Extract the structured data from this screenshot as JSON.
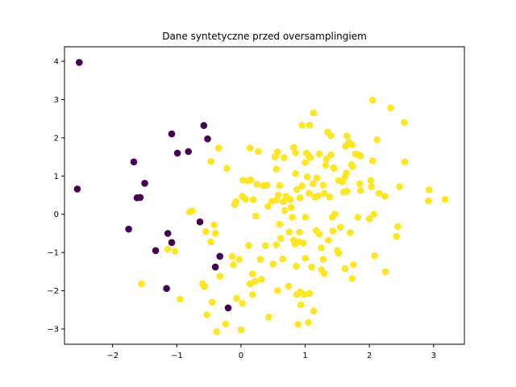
{
  "chart_data": {
    "type": "scatter",
    "title": "Dane syntetyczne przed oversamplingiem",
    "xlabel": "",
    "ylabel": "",
    "xlim": [
      -2.75,
      3.48
    ],
    "ylim": [
      -3.4,
      4.38
    ],
    "xticks": [
      -2,
      -1,
      0,
      1,
      2,
      3
    ],
    "yticks": [
      -3,
      -2,
      -1,
      0,
      1,
      2,
      3,
      4
    ],
    "grid": false,
    "colors": {
      "class_0": "#440154",
      "class_1": "#fde725"
    },
    "series": [
      {
        "class": 0,
        "points": [
          [
            -2.52,
            3.97
          ],
          [
            -2.55,
            0.66
          ],
          [
            -1.75,
            -0.39
          ],
          [
            -1.67,
            1.37
          ],
          [
            -1.62,
            0.43
          ],
          [
            -1.57,
            0.44
          ],
          [
            -1.5,
            0.81
          ],
          [
            -1.33,
            -0.95
          ],
          [
            -1.16,
            -1.94
          ],
          [
            -1.14,
            -0.5
          ],
          [
            -1.08,
            2.1
          ],
          [
            -1.08,
            -0.74
          ],
          [
            -0.99,
            1.6
          ],
          [
            -0.82,
            1.64
          ],
          [
            -0.64,
            -0.2
          ],
          [
            -0.58,
            2.32
          ],
          [
            -0.52,
            1.97
          ],
          [
            -0.4,
            -1.38
          ],
          [
            -0.33,
            -1.1
          ],
          [
            -0.2,
            -2.45
          ]
        ]
      },
      {
        "class": 1,
        "points": [
          [
            -1.55,
            -1.82
          ],
          [
            -1.14,
            -0.91
          ],
          [
            -1.03,
            -0.97
          ],
          [
            -0.95,
            -2.22
          ],
          [
            -0.8,
            0.06
          ],
          [
            -0.76,
            0.09
          ],
          [
            -0.6,
            -1.82
          ],
          [
            -0.57,
            -1.89
          ],
          [
            -0.55,
            -0.45
          ],
          [
            -0.53,
            -2.63
          ],
          [
            -0.47,
            -0.72
          ],
          [
            -0.47,
            1.38
          ],
          [
            -0.45,
            -2.3
          ],
          [
            -0.42,
            -0.28
          ],
          [
            -0.4,
            -0.5
          ],
          [
            -0.38,
            -3.07
          ],
          [
            -0.35,
            1.73
          ],
          [
            -0.33,
            -1.62
          ],
          [
            -0.24,
            -2.87
          ],
          [
            -0.22,
            1.2
          ],
          [
            -0.14,
            -1.1
          ],
          [
            -0.12,
            -1.32
          ],
          [
            -0.1,
            0.25
          ],
          [
            -0.08,
            0.33
          ],
          [
            -0.07,
            -2.2
          ],
          [
            -0.03,
            -1.18
          ],
          [
            0.0,
            -3.02
          ],
          [
            0.02,
            0.47
          ],
          [
            0.02,
            -2.33
          ],
          [
            0.03,
            0.89
          ],
          [
            0.07,
            0.39
          ],
          [
            0.1,
            0.87
          ],
          [
            0.12,
            -0.82
          ],
          [
            0.14,
            1.73
          ],
          [
            0.14,
            -1.82
          ],
          [
            0.15,
            0.9
          ],
          [
            0.18,
            -2.1
          ],
          [
            0.18,
            -1.56
          ],
          [
            0.19,
            0.38
          ],
          [
            0.22,
            -1.75
          ],
          [
            0.23,
            -0.05
          ],
          [
            0.25,
            0.78
          ],
          [
            0.27,
            1.64
          ],
          [
            0.3,
            -1.18
          ],
          [
            0.32,
            -1.7
          ],
          [
            0.35,
            0.75
          ],
          [
            0.38,
            -0.82
          ],
          [
            0.4,
            0.76
          ],
          [
            0.42,
            0.21
          ],
          [
            0.43,
            -2.69
          ],
          [
            0.48,
            0.34
          ],
          [
            0.5,
            -1.3
          ],
          [
            0.53,
            1.5
          ],
          [
            0.55,
            -0.8
          ],
          [
            0.55,
            1.18
          ],
          [
            0.55,
            0.37
          ],
          [
            0.57,
            -2.0
          ],
          [
            0.57,
            1.63
          ],
          [
            0.58,
            0.5
          ],
          [
            0.6,
            0.75
          ],
          [
            0.6,
            -0.26
          ],
          [
            0.62,
            -0.63
          ],
          [
            0.65,
            -1.17
          ],
          [
            0.66,
            0.33
          ],
          [
            0.67,
            1.48
          ],
          [
            0.68,
            0.1
          ],
          [
            0.7,
            0.47
          ],
          [
            0.72,
            0.42
          ],
          [
            0.74,
            -1.88
          ],
          [
            0.75,
            -0.47
          ],
          [
            0.77,
            0.38
          ],
          [
            0.78,
            0.18
          ],
          [
            0.8,
            -0.08
          ],
          [
            0.82,
            -0.68
          ],
          [
            0.82,
            1.75
          ],
          [
            0.84,
            -0.78
          ],
          [
            0.85,
            1.61
          ],
          [
            0.85,
            1.07
          ],
          [
            0.86,
            -1.36
          ],
          [
            0.87,
            0.65
          ],
          [
            0.87,
            -2.1
          ],
          [
            0.89,
            -2.88
          ],
          [
            0.9,
            -0.72
          ],
          [
            0.91,
            -0.47
          ],
          [
            0.92,
            -2.03
          ],
          [
            0.92,
            0.43
          ],
          [
            0.93,
            -2.37
          ],
          [
            0.95,
            2.33
          ],
          [
            0.95,
            0.74
          ],
          [
            0.97,
            -0.75
          ],
          [
            0.98,
            -2.1
          ],
          [
            1.0,
            1.35
          ],
          [
            1.0,
            -1.15
          ],
          [
            1.0,
            -0.08
          ],
          [
            1.02,
            1.6
          ],
          [
            1.03,
            0.98
          ],
          [
            1.05,
            1.54
          ],
          [
            1.05,
            -2.83
          ],
          [
            1.06,
            0.55
          ],
          [
            1.07,
            -2.07
          ],
          [
            1.07,
            2.33
          ],
          [
            1.08,
            1.48
          ],
          [
            1.1,
            -1.38
          ],
          [
            1.12,
            0.8
          ],
          [
            1.13,
            2.65
          ],
          [
            1.13,
            -2.53
          ],
          [
            1.15,
            0.45
          ],
          [
            1.17,
            -0.43
          ],
          [
            1.18,
            0.95
          ],
          [
            1.2,
            0.48
          ],
          [
            1.22,
            1.58
          ],
          [
            1.22,
            -0.52
          ],
          [
            1.25,
            -0.88
          ],
          [
            1.25,
            -1.45
          ],
          [
            1.28,
            -1.18
          ],
          [
            1.28,
            0.76
          ],
          [
            1.3,
            0.54
          ],
          [
            1.3,
            -1.55
          ],
          [
            1.32,
            1.28
          ],
          [
            1.33,
            1.45
          ],
          [
            1.35,
            2.15
          ],
          [
            1.36,
            -0.68
          ],
          [
            1.38,
            0.45
          ],
          [
            1.4,
            2.05
          ],
          [
            1.4,
            1.55
          ],
          [
            1.42,
            -0.08
          ],
          [
            1.43,
            -0.44
          ],
          [
            1.44,
            1.22
          ],
          [
            1.45,
            1.2
          ],
          [
            1.46,
            0.0
          ],
          [
            1.5,
            -0.95
          ],
          [
            1.52,
            -1.02
          ],
          [
            1.52,
            0.88
          ],
          [
            1.55,
            -0.34
          ],
          [
            1.58,
            0.85
          ],
          [
            1.6,
            0.58
          ],
          [
            1.62,
            0.98
          ],
          [
            1.62,
            -1.42
          ],
          [
            1.63,
            1.78
          ],
          [
            1.64,
            1.08
          ],
          [
            1.65,
            0.6
          ],
          [
            1.65,
            2.05
          ],
          [
            1.68,
            1.88
          ],
          [
            1.7,
            -0.48
          ],
          [
            1.72,
            1.3
          ],
          [
            1.73,
            1.82
          ],
          [
            1.73,
            -1.68
          ],
          [
            1.74,
            1.25
          ],
          [
            1.75,
            -1.32
          ],
          [
            1.78,
            1.58
          ],
          [
            1.82,
            -0.08
          ],
          [
            1.84,
            1.55
          ],
          [
            1.85,
            0.8
          ],
          [
            1.86,
            1.52
          ],
          [
            1.86,
            0.62
          ],
          [
            2.0,
            -0.12
          ],
          [
            2.02,
            0.88
          ],
          [
            2.03,
            0.72
          ],
          [
            2.05,
            1.4
          ],
          [
            2.05,
            2.98
          ],
          [
            2.07,
            0.0
          ],
          [
            2.08,
            -1.08
          ],
          [
            2.12,
            1.95
          ],
          [
            2.15,
            0.55
          ],
          [
            2.24,
            0.47
          ],
          [
            2.25,
            -1.5
          ],
          [
            2.33,
            2.78
          ],
          [
            2.42,
            -0.58
          ],
          [
            2.44,
            -0.32
          ],
          [
            2.47,
            0.72
          ],
          [
            2.54,
            2.4
          ],
          [
            2.55,
            1.37
          ],
          [
            2.92,
            0.35
          ],
          [
            2.93,
            0.64
          ],
          [
            3.18,
            0.39
          ]
        ]
      }
    ]
  }
}
